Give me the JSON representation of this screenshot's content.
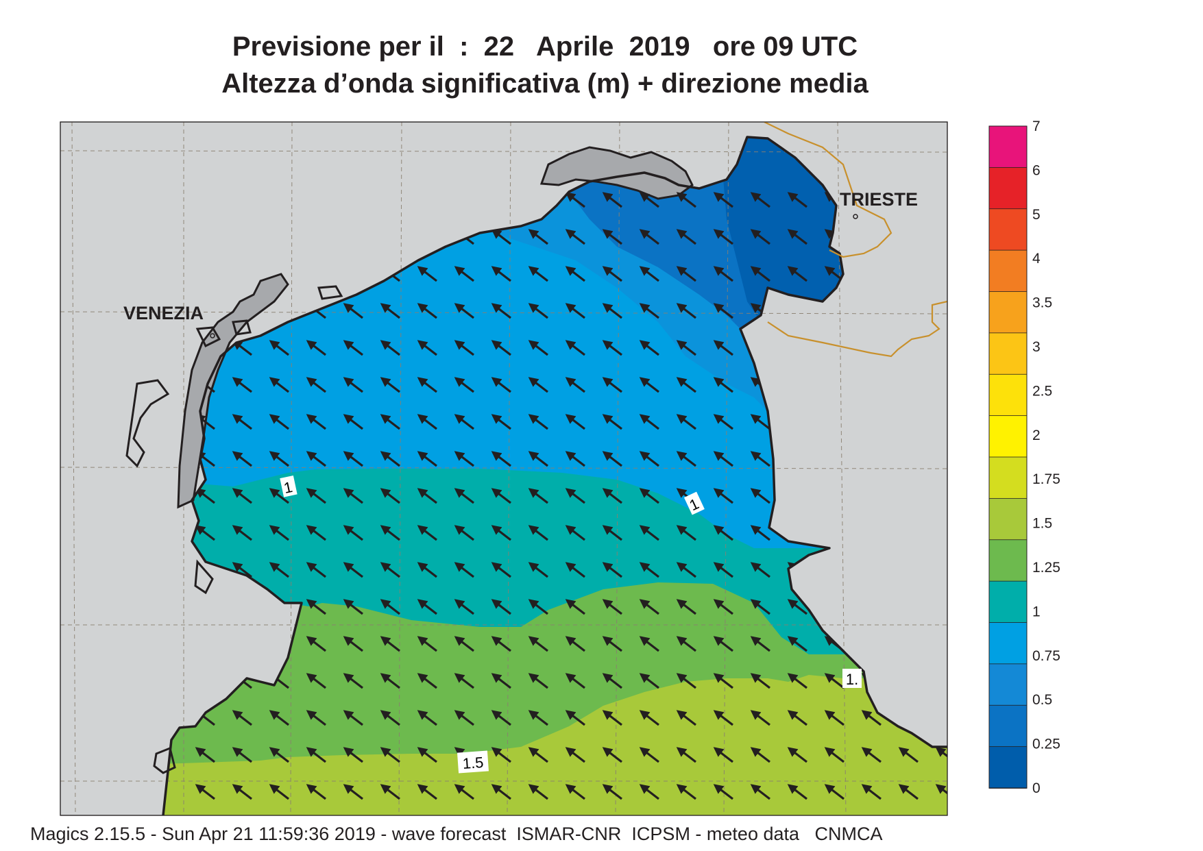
{
  "title": {
    "line1": "Previsione per il  :  22   Aprile  2019   ore 09 UTC",
    "line2": "Altezza d’onda significativa (m) + direzione media"
  },
  "cities": {
    "venezia": "VENEZIA",
    "trieste": "TRIESTE"
  },
  "contour_labels": [
    "1",
    "1",
    "1.",
    "1.5"
  ],
  "legend": {
    "labels": [
      "7",
      "6",
      "5",
      "4",
      "3.5",
      "3",
      "2.5",
      "2",
      "1.75",
      "1.5",
      "1.25",
      "1",
      "0.75",
      "0.5",
      "0.25",
      "0"
    ],
    "colors": [
      "#e8147a",
      "#e62228",
      "#ee4a22",
      "#f27d22",
      "#f7a21c",
      "#fcc515",
      "#fde10a",
      "#fff200",
      "#d4dd1f",
      "#a8c93a",
      "#6dba4e",
      "#00aeaa",
      "#00a0e3",
      "#1489d6",
      "#0b73c4",
      "#005dab"
    ]
  },
  "colors": {
    "land": "#d1d3d4",
    "land_dark": "#a7a9ac",
    "coast": "#231f20",
    "border": "#c8902c",
    "arrow": "#231f20"
  },
  "footer": "Magics 2.15.5 - Sun Apr 21 11:59:36 2019 - wave forecast  ISMAR-CNR  ICPSM - meteo data   CNMCA"
}
